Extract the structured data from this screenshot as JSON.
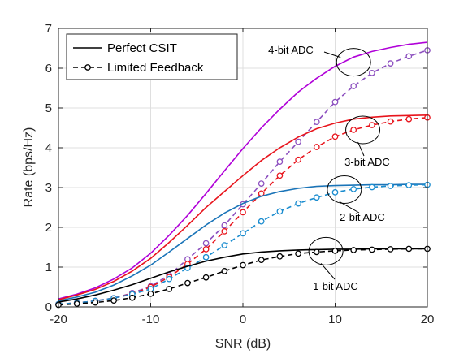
{
  "chart_data": {
    "type": "line",
    "xlabel": "SNR (dB)",
    "ylabel": "Rate (bps/Hz)",
    "xlim": [
      -20,
      20
    ],
    "ylim": [
      0,
      7
    ],
    "xticks": [
      -20,
      -10,
      0,
      10,
      20
    ],
    "yticks": [
      0,
      1,
      2,
      3,
      4,
      5,
      6,
      7
    ],
    "grid": true,
    "legend_position": "top-left",
    "legend": [
      {
        "label": "Perfect CSIT",
        "style": "solid"
      },
      {
        "label": "Limited Feedback",
        "style": "dashed-circle"
      }
    ],
    "x": [
      -20,
      -18,
      -16,
      -14,
      -12,
      -10,
      -8,
      -6,
      -4,
      -2,
      0,
      2,
      4,
      6,
      8,
      10,
      12,
      14,
      16,
      18,
      20
    ],
    "series": [
      {
        "name": "4-bit ADC",
        "style": "solid",
        "color": "#b000d8",
        "values": [
          0.2,
          0.32,
          0.48,
          0.7,
          0.98,
          1.35,
          1.8,
          2.3,
          2.85,
          3.42,
          3.98,
          4.5,
          4.97,
          5.4,
          5.75,
          6.05,
          6.28,
          6.42,
          6.52,
          6.6,
          6.65
        ]
      },
      {
        "name": "4-bit ADC",
        "style": "dashed-circle",
        "color": "#8c4fbf",
        "values": [
          0.07,
          0.1,
          0.15,
          0.22,
          0.35,
          0.52,
          0.8,
          1.2,
          1.6,
          2.05,
          2.58,
          3.1,
          3.65,
          4.15,
          4.65,
          5.15,
          5.55,
          5.88,
          6.12,
          6.3,
          6.45
        ]
      },
      {
        "name": "3-bit ADC",
        "style": "solid",
        "color": "#e8141c",
        "values": [
          0.18,
          0.3,
          0.44,
          0.64,
          0.9,
          1.22,
          1.62,
          2.05,
          2.5,
          2.9,
          3.3,
          3.68,
          4.0,
          4.27,
          4.48,
          4.62,
          4.72,
          4.77,
          4.8,
          4.81,
          4.82
        ]
      },
      {
        "name": "3-bit ADC",
        "style": "dashed-circle",
        "color": "#e8141c",
        "values": [
          0.07,
          0.1,
          0.15,
          0.22,
          0.33,
          0.5,
          0.75,
          1.08,
          1.45,
          1.9,
          2.38,
          2.85,
          3.3,
          3.7,
          4.02,
          4.28,
          4.45,
          4.57,
          4.66,
          4.72,
          4.76
        ]
      },
      {
        "name": "2-bit ADC",
        "style": "solid",
        "color": "#1a74b8",
        "values": [
          0.15,
          0.25,
          0.37,
          0.55,
          0.78,
          1.05,
          1.38,
          1.72,
          2.06,
          2.36,
          2.6,
          2.78,
          2.9,
          2.98,
          3.03,
          3.05,
          3.06,
          3.07,
          3.07,
          3.08,
          3.08
        ]
      },
      {
        "name": "2-bit ADC",
        "style": "dashed-circle",
        "color": "#1a8ccf",
        "values": [
          0.07,
          0.1,
          0.15,
          0.22,
          0.32,
          0.45,
          0.7,
          0.98,
          1.25,
          1.55,
          1.85,
          2.15,
          2.4,
          2.6,
          2.75,
          2.88,
          2.96,
          3.01,
          3.04,
          3.06,
          3.07
        ]
      },
      {
        "name": "1-bit ADC",
        "style": "solid",
        "color": "#000000",
        "values": [
          0.12,
          0.2,
          0.3,
          0.42,
          0.56,
          0.72,
          0.88,
          1.02,
          1.15,
          1.25,
          1.33,
          1.38,
          1.41,
          1.43,
          1.44,
          1.45,
          1.45,
          1.46,
          1.46,
          1.46,
          1.46
        ]
      },
      {
        "name": "1-bit ADC",
        "style": "dashed-circle",
        "color": "#000000",
        "values": [
          0.05,
          0.08,
          0.11,
          0.16,
          0.23,
          0.33,
          0.45,
          0.6,
          0.74,
          0.9,
          1.05,
          1.18,
          1.27,
          1.34,
          1.38,
          1.41,
          1.43,
          1.44,
          1.45,
          1.46,
          1.46
        ]
      }
    ],
    "annotations": [
      {
        "text": "4-bit ADC",
        "target_x": 12,
        "target_y": 6.15
      },
      {
        "text": "3-bit ADC",
        "target_x": 13,
        "target_y": 4.45
      },
      {
        "text": "2-bit ADC",
        "target_x": 11,
        "target_y": 2.95
      },
      {
        "text": "1-bit ADC",
        "target_x": 9,
        "target_y": 1.4
      }
    ]
  }
}
